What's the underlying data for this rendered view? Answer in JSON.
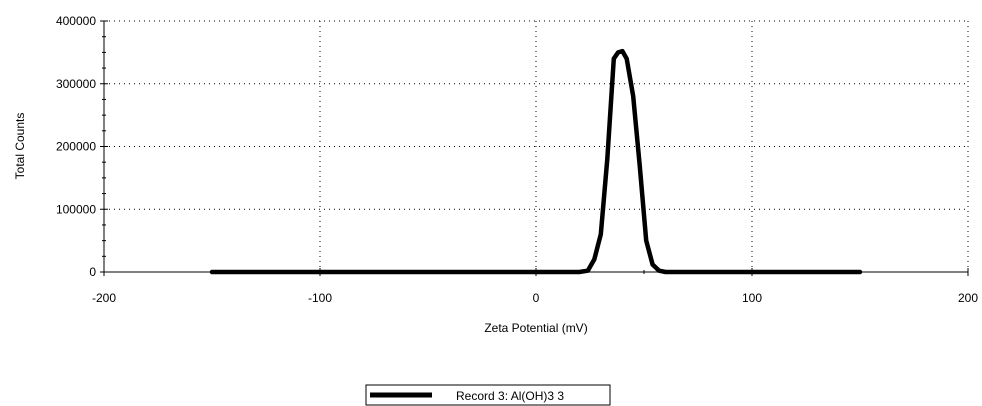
{
  "chart_data": {
    "type": "line",
    "title": "",
    "xlabel": "Zeta Potential (mV)",
    "ylabel": "Total Counts",
    "xlim": [
      -200,
      200
    ],
    "ylim": [
      0,
      400000
    ],
    "x_ticks": [
      "-200",
      "-100",
      "0",
      "100",
      "200"
    ],
    "y_ticks": [
      "0",
      "100000",
      "200000",
      "300000",
      "400000"
    ],
    "grid": true,
    "legend_position": "bottom-center",
    "series": [
      {
        "name": "Record 3: Al(OH)3 3",
        "color": "#000000",
        "x": [
          -150,
          -100,
          -50,
          0,
          20,
          24,
          27,
          30,
          33,
          36,
          38,
          40,
          42,
          45,
          48,
          51,
          54,
          57,
          60,
          70,
          100,
          150
        ],
        "y": [
          0,
          0,
          0,
          0,
          0,
          2000,
          20000,
          60000,
          180000,
          340000,
          350000,
          352000,
          340000,
          280000,
          170000,
          50000,
          12000,
          2000,
          0,
          0,
          0,
          0
        ]
      }
    ]
  }
}
